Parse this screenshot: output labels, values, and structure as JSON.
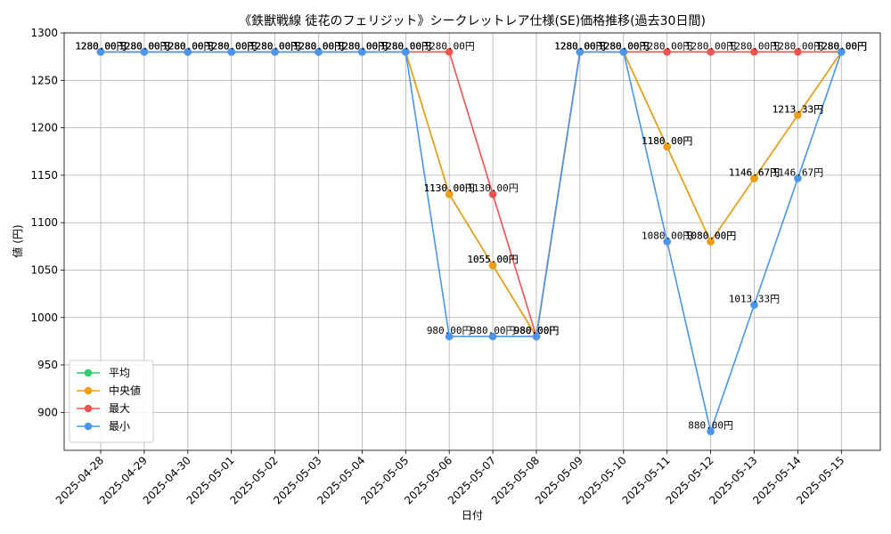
{
  "chart_data": {
    "type": "line",
    "title": "《鉄獣戦線 徒花のフェリジット》シークレットレア仕様(SE)価格推移(過去30日間)",
    "xlabel": "日付",
    "ylabel": "値 (円)",
    "ylim": [
      860,
      1300
    ],
    "yticks": [
      900,
      950,
      1000,
      1050,
      1100,
      1150,
      1200,
      1250,
      1300
    ],
    "grid": true,
    "legend_position": "bottom-left",
    "categories": [
      "2025-04-28",
      "2025-04-29",
      "2025-04-30",
      "2025-05-01",
      "2025-05-02",
      "2025-05-03",
      "2025-05-04",
      "2025-05-05",
      "2025-05-06",
      "2025-05-07",
      "2025-05-08",
      "2025-05-09",
      "2025-05-10",
      "2025-05-11",
      "2025-05-12",
      "2025-05-13",
      "2025-05-14",
      "2025-05-15"
    ],
    "series": [
      {
        "name": "平均",
        "color": "#2ecc71",
        "values": [
          1280,
          1280,
          1280,
          1280,
          1280,
          1280,
          1280,
          1280,
          1130,
          1055,
          980,
          1280,
          1280,
          1180,
          1080,
          1146.67,
          1213.33,
          1280
        ],
        "labels": [
          "1280.00円",
          "1280.00円",
          "1280.00円",
          "1280.00円",
          "1280.00円",
          "1280.00円",
          "1280.00円",
          "1280.00円",
          "1130.00円",
          "1055.00円",
          "980.00円",
          "1280.00円",
          "1280.00円",
          "1180.00円",
          "1080.00円",
          "1146.67円",
          "1213.33円",
          "1280.00円"
        ]
      },
      {
        "name": "中央値",
        "color": "#f39c12",
        "values": [
          1280,
          1280,
          1280,
          1280,
          1280,
          1280,
          1280,
          1280,
          1130,
          1055,
          980,
          1280,
          1280,
          1180,
          1080,
          1146.67,
          1213.33,
          1280
        ],
        "labels": [
          "1280.00円",
          "1280.00円",
          "1280.00円",
          "1280.00円",
          "1280.00円",
          "1280.00円",
          "1280.00円",
          "1280.00円",
          "1130.00円",
          "1055.00円",
          "980.00円",
          "1280.00円",
          "1280.00円",
          "1180.00円",
          "1080.00円",
          "1146.67円",
          "1213.33円",
          "1280.00円"
        ]
      },
      {
        "name": "最大",
        "color": "#ef5350",
        "values": [
          1280,
          1280,
          1280,
          1280,
          1280,
          1280,
          1280,
          1280,
          1280,
          1130,
          980,
          1280,
          1280,
          1280,
          1280,
          1280,
          1280,
          1280
        ],
        "labels": [
          "1280.00円",
          "1280.00円",
          "1280.00円",
          "1280.00円",
          "1280.00円",
          "1280.00円",
          "1280.00円",
          "1280.00円",
          "1280.00円",
          "1130.00円",
          "980.00円",
          "1280.00円",
          "1280.00円",
          "1280.00円",
          "1280.00円",
          "1280.00円",
          "1280.00円",
          "1280.00円"
        ]
      },
      {
        "name": "最小",
        "color": "#4a96ec",
        "values": [
          1280,
          1280,
          1280,
          1280,
          1280,
          1280,
          1280,
          1280,
          980,
          980,
          980,
          1280,
          1280,
          1080,
          880,
          1013.33,
          1146.67,
          1280
        ],
        "labels": [
          "1280.00円",
          "1280.00円",
          "1280.00円",
          "1280.00円",
          "1280.00円",
          "1280.00円",
          "1280.00円",
          "1280.00円",
          "980.00円",
          "980.00円",
          "980.00円",
          "1280.00円",
          "1280.00円",
          "1080.00円",
          "880.00円",
          "1013.33円",
          "1146.67円",
          "1280.00円"
        ]
      }
    ]
  }
}
